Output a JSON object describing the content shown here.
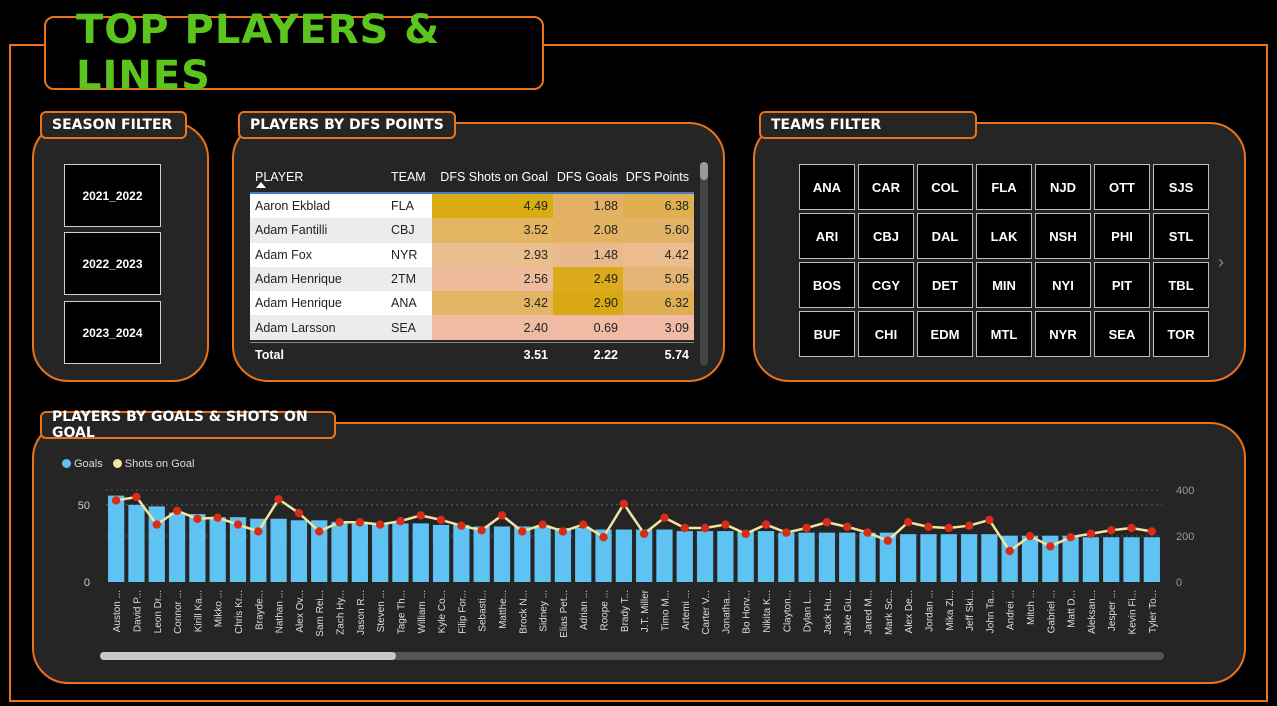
{
  "title": "TOP PLAYERS & LINES",
  "season_filter": {
    "label": "SEASON FILTER",
    "options": [
      "2021_2022",
      "2022_2023",
      "2023_2024"
    ]
  },
  "players_table": {
    "label": "PLAYERS BY DFS POINTS",
    "columns": [
      "PLAYER",
      "TEAM",
      "DFS Shots on Goal",
      "DFS Goals",
      "DFS Points"
    ],
    "rows": [
      {
        "player": "Aaron Ekblad",
        "team": "FLA",
        "shots": "4.49",
        "goals": "1.88",
        "points": "6.38",
        "colors": [
          "#d9ac14",
          "#e2b163",
          "#e0b050"
        ]
      },
      {
        "player": "Adam Fantilli",
        "team": "CBJ",
        "shots": "3.52",
        "goals": "2.08",
        "points": "5.60",
        "colors": [
          "#e3b462",
          "#e2b162",
          "#e2b266"
        ]
      },
      {
        "player": "Adam Fox",
        "team": "NYR",
        "shots": "2.93",
        "goals": "1.48",
        "points": "4.42",
        "colors": [
          "#ebbe8d",
          "#e9b98e",
          "#ebbc8e"
        ]
      },
      {
        "player": "Adam Henrique",
        "team": "2TM",
        "shots": "2.56",
        "goals": "2.49",
        "points": "5.05",
        "colors": [
          "#eebc9c",
          "#dcab1c",
          "#e6b474"
        ]
      },
      {
        "player": "Adam Henrique",
        "team": "ANA",
        "shots": "3.42",
        "goals": "2.90",
        "points": "6.32",
        "colors": [
          "#e3b463",
          "#d8a912",
          "#e0b050"
        ]
      },
      {
        "player": "Adam Larsson",
        "team": "SEA",
        "shots": "2.40",
        "goals": "0.69",
        "points": "3.09",
        "colors": [
          "#efbba2",
          "#f0baa4",
          "#f0baa6"
        ]
      }
    ],
    "total": {
      "label": "Total",
      "shots": "3.51",
      "goals": "2.22",
      "points": "5.74"
    }
  },
  "teams_filter": {
    "label": "TEAMS FILTER",
    "teams": [
      "ANA",
      "CAR",
      "COL",
      "FLA",
      "NJD",
      "OTT",
      "SJS",
      "ARI",
      "CBJ",
      "DAL",
      "LAK",
      "NSH",
      "PHI",
      "STL",
      "BOS",
      "CGY",
      "DET",
      "MIN",
      "NYI",
      "PIT",
      "TBL",
      "BUF",
      "CHI",
      "EDM",
      "MTL",
      "NYR",
      "SEA",
      "TOR"
    ],
    "next_icon": "chevron-right-icon"
  },
  "chart_panel": {
    "label": "PLAYERS BY GOALS & SHOTS ON GOAL"
  },
  "chart_data": {
    "type": "bar",
    "legend": [
      "Goals",
      "Shots on Goal"
    ],
    "colors": {
      "goals": "#5ec2f2",
      "shots_line": "#f3e3a1",
      "shots_marker": "#d62c18"
    },
    "left_axis": {
      "ticks": [
        "0",
        "50"
      ],
      "ylim": [
        0,
        70
      ]
    },
    "right_axis": {
      "ticks": [
        "0",
        "200",
        "400"
      ],
      "ylim": [
        0,
        470
      ]
    },
    "categories": [
      "Auston ...",
      "David P...",
      "Leon Dr...",
      "Connor ...",
      "Kirill Ka...",
      "Mikko ...",
      "Chris Kr...",
      "Brayde...",
      "Nathan ...",
      "Alex Ov...",
      "Sam Rei...",
      "Zach Hy...",
      "Jason R...",
      "Steven ...",
      "Tage Th...",
      "William ...",
      "Kyle Co...",
      "Filip For...",
      "Sebasti...",
      "Matthe...",
      "Brock N...",
      "Sidney ...",
      "Elias Pet...",
      "Adrian ...",
      "Roope ...",
      "Brady T...",
      "J.T. Miller",
      "Timo M...",
      "Artemi ...",
      "Carter V...",
      "Jonatha...",
      "Bo Horv...",
      "Nikita K...",
      "Clayton...",
      "Dylan L...",
      "Jack Hu...",
      "Jake Gu...",
      "Jared M...",
      "Mark Sc...",
      "Alex De...",
      "Jordan ...",
      "Mika Zi...",
      "Jeff Ski...",
      "John Ta...",
      "Andrei ...",
      "Mitch ...",
      "Gabriel ...",
      "Matt D...",
      "Aleksan...",
      "Jesper ...",
      "Kevin Fi...",
      "Tyler To..."
    ],
    "series": [
      {
        "name": "Goals",
        "values": [
          56,
          50,
          49,
          45,
          44,
          42,
          42,
          41,
          41,
          40,
          40,
          39,
          38,
          38,
          38,
          38,
          37,
          37,
          36,
          36,
          36,
          36,
          35,
          35,
          34,
          34,
          34,
          34,
          33,
          33,
          33,
          33,
          33,
          32,
          32,
          32,
          32,
          32,
          32,
          31,
          31,
          31,
          31,
          31,
          30,
          30,
          30,
          30,
          29,
          29,
          29,
          29
        ]
      },
      {
        "name": "Shots on Goal",
        "values": [
          355,
          370,
          250,
          310,
          275,
          280,
          250,
          220,
          360,
          300,
          220,
          260,
          260,
          250,
          265,
          290,
          270,
          245,
          225,
          290,
          220,
          250,
          220,
          250,
          195,
          340,
          210,
          280,
          235,
          235,
          250,
          210,
          250,
          215,
          235,
          260,
          240,
          215,
          180,
          260,
          240,
          235,
          245,
          270,
          135,
          200,
          155,
          195,
          210,
          225,
          235,
          220
        ]
      }
    ]
  }
}
